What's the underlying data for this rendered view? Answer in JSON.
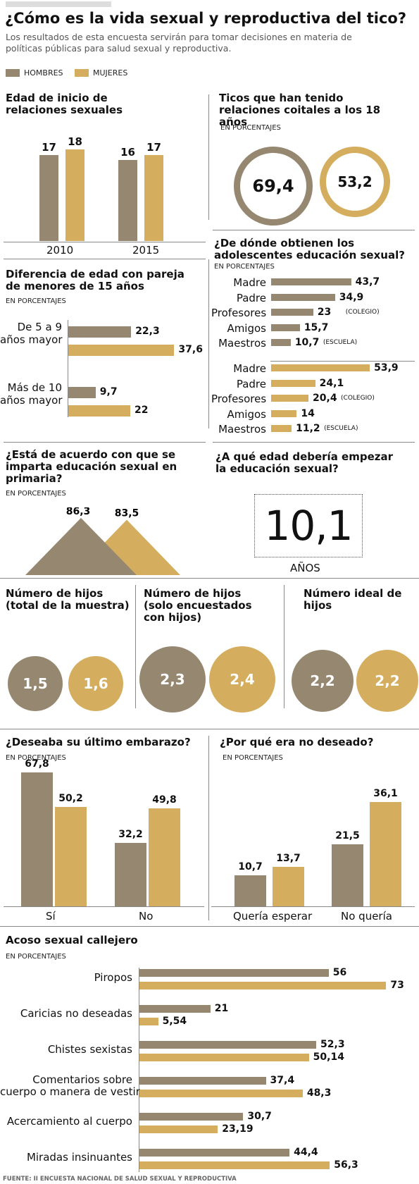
{
  "header": {
    "title": "¿Cómo es la vida sexual y reproductiva del tico?",
    "subtitle": "Los resultados de esta encuesta servirán para tomar decisiones en materia de políticas públicas para salud sexual y reproductiva."
  },
  "legend": {
    "men": "HOMBRES",
    "women": "MUJERES"
  },
  "colors": {
    "men": "#968870",
    "women": "#d4ae5e"
  },
  "units_label": "EN PORCENTAJES",
  "source": "FUENTE: II ENCUESTA NACIONAL DE SALUD SEXUAL Y REPRODUCTIVA",
  "chart_data": [
    {
      "id": "edad_inicio",
      "type": "bar",
      "title": "Edad de inicio de relaciones sexuales",
      "categories": [
        "2010",
        "2015"
      ],
      "series": [
        {
          "name": "HOMBRES",
          "values": [
            17,
            16
          ]
        },
        {
          "name": "MUJERES",
          "values": [
            18,
            17
          ]
        }
      ]
    },
    {
      "id": "coitales_18",
      "type": "circle-values",
      "title": "Ticos que han tenido relaciones coitales a los 18 años",
      "unit": "EN PORCENTAJES",
      "men": "69,4",
      "women": "53,2"
    },
    {
      "id": "educacion_fuente",
      "type": "bar",
      "title": "¿De dónde obtienen los adolescentes educación sexual?",
      "unit": "EN PORCENTAJES",
      "categories": [
        "Madre",
        "Padre",
        "Profesores",
        "Amigos",
        "Maestros"
      ],
      "notes": [
        "",
        "",
        "(COLEGIO)",
        "",
        "(ESCUELA)"
      ],
      "series": [
        {
          "name": "HOMBRES",
          "values": [
            43.7,
            34.9,
            23,
            15.7,
            10.7
          ],
          "labels": [
            "43,7",
            "34,9",
            "23",
            "15,7",
            "10,7"
          ]
        },
        {
          "name": "MUJERES",
          "values": [
            53.9,
            24.1,
            20.4,
            14,
            11.2
          ],
          "labels": [
            "53,9",
            "24,1",
            "20,4",
            "14",
            "11,2"
          ]
        }
      ]
    },
    {
      "id": "diferencia_edad",
      "type": "bar",
      "title": "Diferencia de edad con pareja de menores de 15 años",
      "unit": "EN PORCENTAJES",
      "categories": [
        "De 5 a 9 años mayor",
        "Más de 10 años mayor"
      ],
      "category_lines": [
        [
          "De 5 a 9",
          "años mayor"
        ],
        [
          "Más de 10",
          "años mayor"
        ]
      ],
      "series": [
        {
          "name": "HOMBRES",
          "values": [
            22.3,
            9.7
          ],
          "labels": [
            "22,3",
            "9,7"
          ]
        },
        {
          "name": "MUJERES",
          "values": [
            37.6,
            22
          ],
          "labels": [
            "37,6",
            "22"
          ]
        }
      ]
    },
    {
      "id": "acuerdo_primaria",
      "type": "area",
      "title": "¿Está de acuerdo con que se imparta educación sexual en primaria?",
      "unit": "EN PORCENTAJES",
      "series": [
        {
          "name": "HOMBRES",
          "values": [
            86.3
          ],
          "labels": [
            "86,3"
          ]
        },
        {
          "name": "MUJERES",
          "values": [
            83.5
          ],
          "labels": [
            "83,5"
          ]
        }
      ]
    },
    {
      "id": "edad_educacion",
      "type": "table",
      "title": "¿A qué edad debería empezar la educación sexual?",
      "value": "10,1",
      "unit": "AÑOS"
    },
    {
      "id": "hijos",
      "type": "circle-values",
      "groups": [
        {
          "title": "Número de hijos (total de la muestra)",
          "men": "1,5",
          "women": "1,6"
        },
        {
          "title": "Número de hijos (solo encuestados con hijos)",
          "men": "2,3",
          "women": "2,4"
        },
        {
          "title": "Número ideal de hijos",
          "men": "2,2",
          "women": "2,2"
        }
      ]
    },
    {
      "id": "ultimo_embarazo",
      "type": "bar",
      "title": "¿Deseaba su último embarazo?",
      "unit": "EN PORCENTAJES",
      "categories": [
        "Sí",
        "No"
      ],
      "series": [
        {
          "name": "HOMBRES",
          "values": [
            67.8,
            32.2
          ],
          "labels": [
            "67,8",
            "32,2"
          ]
        },
        {
          "name": "MUJERES",
          "values": [
            50.2,
            49.8
          ],
          "labels": [
            "50,2",
            "49,8"
          ]
        }
      ]
    },
    {
      "id": "no_deseado",
      "type": "bar",
      "title": "¿Por qué era no deseado?",
      "unit": "EN PORCENTAJES",
      "categories": [
        "Quería esperar",
        "No quería"
      ],
      "series": [
        {
          "name": "HOMBRES",
          "values": [
            10.7,
            21.5
          ],
          "labels": [
            "10,7",
            "21,5"
          ]
        },
        {
          "name": "MUJERES",
          "values": [
            13.7,
            36.1
          ],
          "labels": [
            "13,7",
            "36,1"
          ]
        }
      ]
    },
    {
      "id": "acoso",
      "type": "bar",
      "title": "Acoso sexual callejero",
      "unit": "EN PORCENTAJES",
      "categories": [
        "Piropos",
        "Caricias no deseadas",
        "Chistes sexistas",
        "Comentarios sobre cuerpo o manera de vestir",
        "Acercamiento al cuerpo",
        "Miradas insinuantes"
      ],
      "category_lines": [
        [
          "Piropos"
        ],
        [
          "Caricias no deseadas"
        ],
        [
          "Chistes sexistas"
        ],
        [
          "Comentarios sobre",
          "cuerpo o manera de vestir"
        ],
        [
          "Acercamiento al cuerpo"
        ],
        [
          "Miradas insinuantes"
        ]
      ],
      "series": [
        {
          "name": "HOMBRES",
          "values": [
            56,
            21,
            52.3,
            37.4,
            30.7,
            44.4
          ],
          "labels": [
            "56",
            "21",
            "52,3",
            "37,4",
            "30,7",
            "44,4"
          ]
        },
        {
          "name": "MUJERES",
          "values": [
            73,
            5.54,
            50.14,
            48.3,
            23.19,
            56.3
          ],
          "labels": [
            "73",
            "5,54",
            "50,14",
            "48,3",
            "23,19",
            "56,3"
          ]
        }
      ]
    }
  ]
}
